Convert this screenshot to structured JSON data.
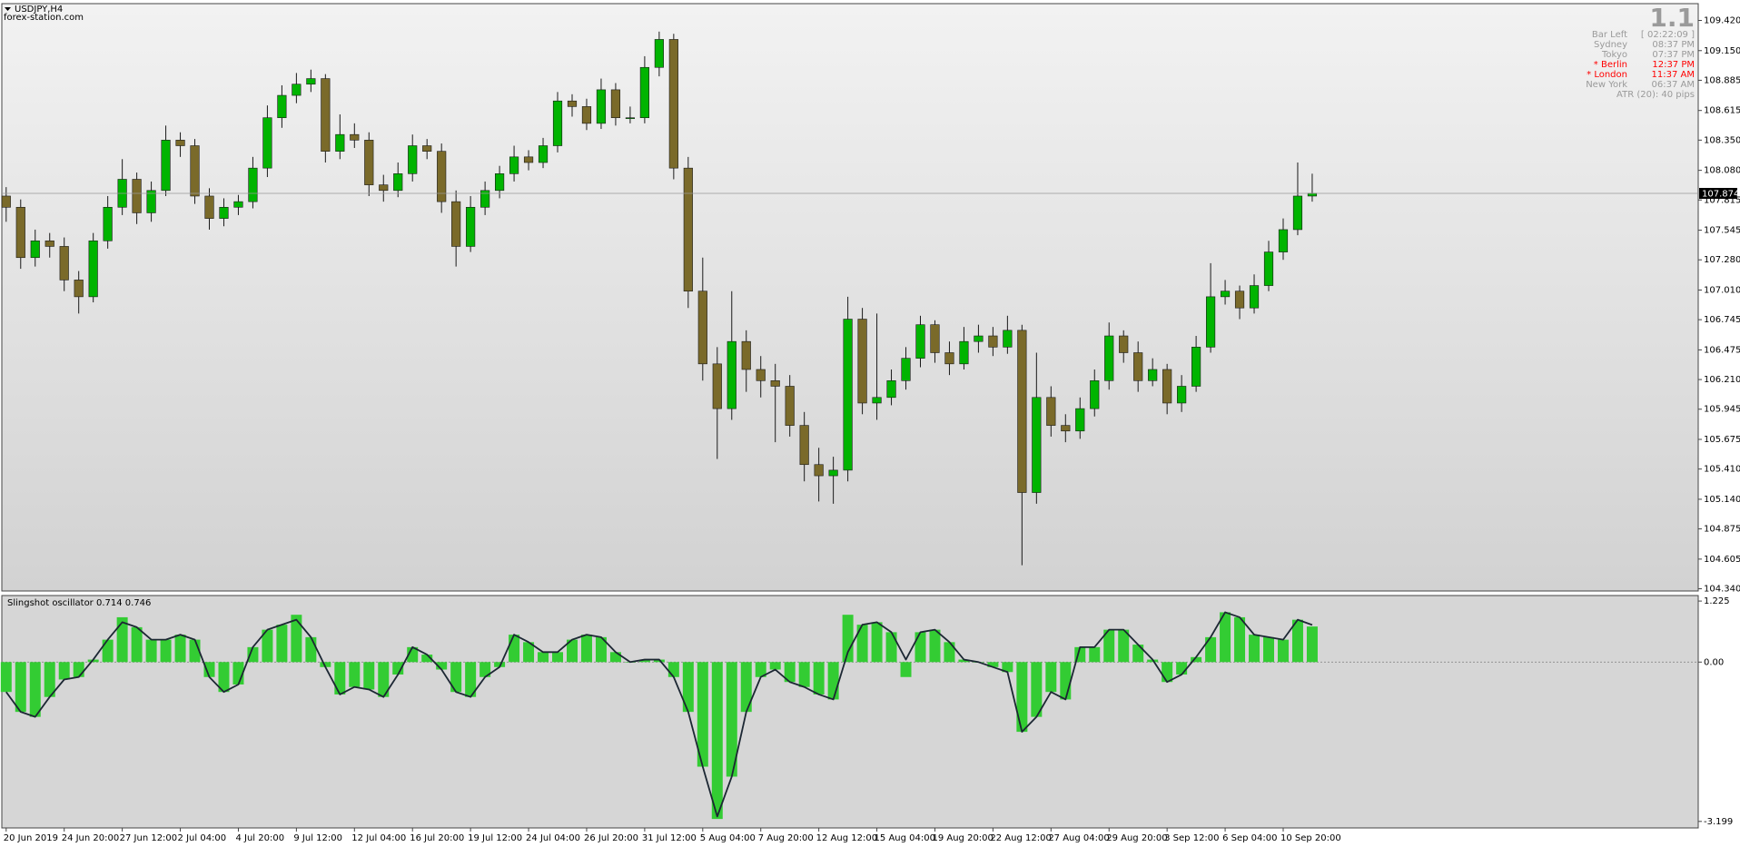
{
  "chart_data": [
    {
      "type": "candlestick",
      "title": "USDJPY,H4",
      "subtitle": "forex-station.com",
      "colors": {
        "up": "#00b400",
        "down": "#7a6a2a",
        "wick": "#1a1a1a"
      },
      "xlim": [
        -0.3,
        116.6
      ],
      "xticks": [
        {
          "value": 0,
          "label": "20 Jun 2019"
        },
        {
          "value": 4,
          "label": "24 Jun 20:00"
        },
        {
          "value": 8,
          "label": "27 Jun 12:00"
        },
        {
          "value": 12,
          "label": "2 Jul 04:00"
        },
        {
          "value": 16,
          "label": "4 Jul 20:00"
        },
        {
          "value": 20,
          "label": "9 Jul 12:00"
        },
        {
          "value": 24,
          "label": "12 Jul 04:00"
        },
        {
          "value": 28,
          "label": "16 Jul 20:00"
        },
        {
          "value": 32,
          "label": "19 Jul 12:00"
        },
        {
          "value": 36,
          "label": "24 Jul 04:00"
        },
        {
          "value": 40,
          "label": "26 Jul 20:00"
        },
        {
          "value": 44,
          "label": "31 Jul 12:00"
        },
        {
          "value": 48,
          "label": "5 Aug 04:00"
        },
        {
          "value": 52,
          "label": "7 Aug 20:00"
        },
        {
          "value": 56,
          "label": "12 Aug 12:00"
        },
        {
          "value": 60,
          "label": "15 Aug 04:00"
        },
        {
          "value": 64,
          "label": "19 Aug 20:00"
        },
        {
          "value": 68,
          "label": "22 Aug 12:00"
        },
        {
          "value": 72,
          "label": "27 Aug 04:00"
        },
        {
          "value": 76,
          "label": "29 Aug 20:00"
        },
        {
          "value": 80,
          "label": "3 Sep 12:00"
        },
        {
          "value": 84,
          "label": "6 Sep 04:00"
        },
        {
          "value": 88,
          "label": "10 Sep 20:00"
        }
      ],
      "ylim": [
        104.32,
        109.57
      ],
      "yticks": [
        {
          "value": 109.42,
          "label": "109.420"
        },
        {
          "value": 109.15,
          "label": "109.150"
        },
        108.885,
        108.615,
        {
          "value": 108.35,
          "label": "108.350"
        },
        {
          "value": 108.08,
          "label": "108.080"
        },
        107.815,
        107.545,
        {
          "value": 107.28,
          "label": "107.280"
        },
        {
          "value": 107.01,
          "label": "107.010"
        },
        106.745,
        106.475,
        {
          "value": 106.21,
          "label": "106.210"
        },
        105.945,
        105.675,
        {
          "value": 105.41,
          "label": "105.410"
        },
        {
          "value": 105.14,
          "label": "105.140"
        },
        104.875,
        104.605,
        {
          "value": 104.34,
          "label": "104.340"
        }
      ],
      "current_price": 107.874,
      "open": [
        107.85,
        107.75,
        107.3,
        107.45,
        107.4,
        107.1,
        106.95,
        107.45,
        107.75,
        108.0,
        107.7,
        107.9,
        108.35,
        108.3,
        107.85,
        107.65,
        107.75,
        107.8,
        108.1,
        108.55,
        108.75,
        108.85,
        108.9,
        108.25,
        108.4,
        108.35,
        107.95,
        107.9,
        108.05,
        108.3,
        108.25,
        107.8,
        107.4,
        107.75,
        107.9,
        108.05,
        108.2,
        108.15,
        108.3,
        108.7,
        108.65,
        108.5,
        108.8,
        108.55,
        108.55,
        109.0,
        109.25,
        108.1,
        107.0,
        106.35,
        105.95,
        106.55,
        106.3,
        106.2,
        106.15,
        105.8,
        105.45,
        105.35,
        105.4,
        106.75,
        106.0,
        106.05,
        106.2,
        106.4,
        106.7,
        106.45,
        106.35,
        106.55,
        106.6,
        106.5,
        106.65,
        105.2,
        106.05,
        105.8,
        105.75,
        105.95,
        106.2,
        106.6,
        106.45,
        106.2,
        106.3,
        106.0,
        106.15,
        106.5,
        106.95,
        107.0,
        106.85,
        107.05,
        107.35,
        107.55,
        107.85
      ],
      "high": [
        107.93,
        107.82,
        107.55,
        107.52,
        107.48,
        107.18,
        107.52,
        107.85,
        108.18,
        108.06,
        107.98,
        108.48,
        108.42,
        108.36,
        107.92,
        107.83,
        107.86,
        108.2,
        108.66,
        108.84,
        108.95,
        108.98,
        108.94,
        108.58,
        108.5,
        108.42,
        108.04,
        108.15,
        108.4,
        108.36,
        108.32,
        107.9,
        107.85,
        107.98,
        108.12,
        108.3,
        108.26,
        108.37,
        108.78,
        108.76,
        108.72,
        108.9,
        108.86,
        108.65,
        109.1,
        109.32,
        109.3,
        108.2,
        107.3,
        106.5,
        107.0,
        106.65,
        106.42,
        106.35,
        106.25,
        105.92,
        105.6,
        105.52,
        106.95,
        106.85,
        106.8,
        106.3,
        106.5,
        106.78,
        106.74,
        106.55,
        106.68,
        106.7,
        106.68,
        106.78,
        106.7,
        106.45,
        106.15,
        105.9,
        106.05,
        106.3,
        106.72,
        106.65,
        106.55,
        106.4,
        106.35,
        106.25,
        106.6,
        107.25,
        107.1,
        107.05,
        107.15,
        107.45,
        107.65,
        108.15,
        108.05
      ],
      "low": [
        107.62,
        107.2,
        107.22,
        107.3,
        107.0,
        106.8,
        106.9,
        107.38,
        107.68,
        107.6,
        107.62,
        107.85,
        108.2,
        107.78,
        107.55,
        107.58,
        107.68,
        107.74,
        108.02,
        108.46,
        108.68,
        108.78,
        108.15,
        108.18,
        108.28,
        107.85,
        107.8,
        107.84,
        107.98,
        108.18,
        107.7,
        107.22,
        107.35,
        107.68,
        107.83,
        107.98,
        108.08,
        108.1,
        108.24,
        108.56,
        108.44,
        108.45,
        108.48,
        108.5,
        108.5,
        108.92,
        108.0,
        106.85,
        106.2,
        105.5,
        105.85,
        106.1,
        106.05,
        105.65,
        105.7,
        105.3,
        105.12,
        105.1,
        105.3,
        105.9,
        105.85,
        105.98,
        106.12,
        106.32,
        106.36,
        106.25,
        106.3,
        106.45,
        106.42,
        106.44,
        104.55,
        105.1,
        105.7,
        105.65,
        105.68,
        105.88,
        106.12,
        106.36,
        106.1,
        106.15,
        105.9,
        105.92,
        106.1,
        106.45,
        106.88,
        106.75,
        106.8,
        107.0,
        107.28,
        107.5,
        107.8
      ],
      "close": [
        107.75,
        107.3,
        107.45,
        107.4,
        107.1,
        106.95,
        107.45,
        107.75,
        108.0,
        107.7,
        107.9,
        108.35,
        108.3,
        107.85,
        107.65,
        107.75,
        107.8,
        108.1,
        108.55,
        108.75,
        108.85,
        108.9,
        108.25,
        108.4,
        108.35,
        107.95,
        107.9,
        108.05,
        108.3,
        108.25,
        107.8,
        107.4,
        107.75,
        107.9,
        108.05,
        108.2,
        108.15,
        108.3,
        108.7,
        108.65,
        108.5,
        108.8,
        108.55,
        108.55,
        109.0,
        109.25,
        108.1,
        107.0,
        106.35,
        105.95,
        106.55,
        106.3,
        106.2,
        106.15,
        105.8,
        105.45,
        105.35,
        105.4,
        106.75,
        106.0,
        106.05,
        106.2,
        106.4,
        106.7,
        106.45,
        106.35,
        106.55,
        106.6,
        106.5,
        106.65,
        105.2,
        106.05,
        105.8,
        105.75,
        105.95,
        106.2,
        106.6,
        106.45,
        106.2,
        106.3,
        106.0,
        106.15,
        106.5,
        106.95,
        107.0,
        106.85,
        107.05,
        107.35,
        107.55,
        107.85,
        107.874
      ],
      "info_panel": {
        "big": "1.1",
        "rows": [
          {
            "label": "Bar Left",
            "value": "[ 02:22:09 ]",
            "color": "#9a9a9a"
          },
          {
            "label": "Sydney",
            "value": "08:37 PM",
            "color": "#9a9a9a"
          },
          {
            "label": "Tokyo",
            "value": "07:37 PM",
            "color": "#9a9a9a"
          },
          {
            "label": "* Berlin",
            "value": "12:37 PM",
            "color": "#ff0000"
          },
          {
            "label": "* London",
            "value": "11:37 AM",
            "color": "#ff0000"
          },
          {
            "label": "New York",
            "value": "06:37 AM",
            "color": "#9a9a9a"
          }
        ],
        "atr": "ATR (20): 40 pips"
      }
    },
    {
      "type": "bar",
      "title": "Slingshot oscillator 0.714 0.746",
      "xlim": [
        -0.3,
        116.6
      ],
      "ylim": [
        -3.33,
        1.336
      ],
      "yticks": [
        1.225,
        {
          "value": 0,
          "label": "0.00"
        },
        -3.199
      ],
      "zero_line": true,
      "series": [
        {
          "type": "bar",
          "color": "#33cc33",
          "values": [
            -0.6,
            -1.0,
            -1.1,
            -0.7,
            -0.35,
            -0.3,
            0.05,
            0.45,
            0.9,
            0.7,
            0.45,
            0.45,
            0.55,
            0.45,
            -0.3,
            -0.6,
            -0.45,
            0.3,
            0.65,
            0.75,
            0.95,
            0.5,
            -0.1,
            -0.65,
            -0.5,
            -0.55,
            -0.7,
            -0.25,
            0.3,
            0.15,
            -0.15,
            -0.6,
            -0.7,
            -0.3,
            -0.1,
            0.55,
            0.4,
            0.2,
            0.2,
            0.45,
            0.55,
            0.5,
            0.2,
            0.0,
            0.05,
            0.05,
            -0.3,
            -1.0,
            -2.1,
            -3.15,
            -2.3,
            -1.0,
            -0.3,
            -0.15,
            -0.4,
            -0.5,
            -0.65,
            -0.75,
            0.95,
            0.75,
            0.8,
            0.6,
            -0.3,
            0.6,
            0.65,
            0.4,
            0.05,
            0.0,
            -0.1,
            -0.2,
            -1.4,
            -1.1,
            -0.6,
            -0.75,
            0.3,
            0.3,
            0.65,
            0.65,
            0.35,
            0.05,
            -0.4,
            -0.25,
            0.1,
            0.5,
            1.0,
            0.9,
            0.55,
            0.5,
            0.45,
            0.85,
            0.714
          ]
        },
        {
          "type": "line",
          "color": "#1c2733",
          "values": [
            -0.6,
            -1.0,
            -1.1,
            -0.7,
            -0.35,
            -0.3,
            0.05,
            0.45,
            0.8,
            0.7,
            0.45,
            0.45,
            0.55,
            0.45,
            -0.3,
            -0.6,
            -0.45,
            0.3,
            0.65,
            0.75,
            0.85,
            0.5,
            -0.1,
            -0.65,
            -0.5,
            -0.55,
            -0.7,
            -0.25,
            0.3,
            0.15,
            -0.15,
            -0.6,
            -0.7,
            -0.3,
            -0.1,
            0.55,
            0.4,
            0.2,
            0.2,
            0.45,
            0.55,
            0.5,
            0.2,
            0.0,
            0.05,
            0.05,
            -0.3,
            -1.0,
            -2.1,
            -3.1,
            -2.3,
            -1.0,
            -0.3,
            -0.15,
            -0.4,
            -0.5,
            -0.65,
            -0.75,
            0.2,
            0.75,
            0.8,
            0.6,
            0.05,
            0.6,
            0.65,
            0.4,
            0.05,
            0.0,
            -0.1,
            -0.2,
            -1.4,
            -1.1,
            -0.6,
            -0.75,
            0.3,
            0.3,
            0.65,
            0.65,
            0.35,
            0.05,
            -0.4,
            -0.25,
            0.1,
            0.5,
            1.0,
            0.9,
            0.55,
            0.5,
            0.45,
            0.85,
            0.746
          ]
        }
      ]
    }
  ]
}
